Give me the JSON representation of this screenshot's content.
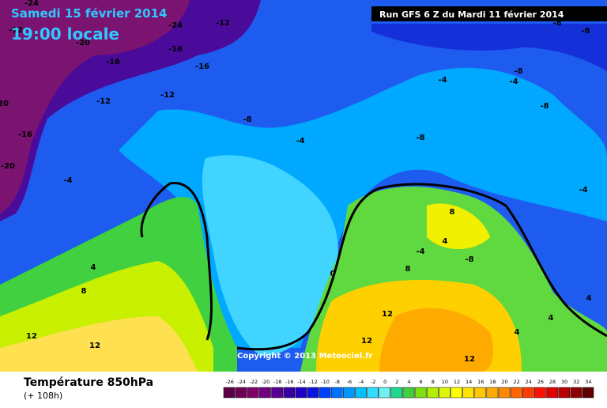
{
  "header": {
    "date": "Samedi 15 février 2014",
    "time": "19:00 locale",
    "run": "Run GFS 6 Z du Mardi 11 février 2014"
  },
  "copyright": "Copyright © 2013 Meteociel.fr",
  "footer": {
    "title": "Température 850hPa",
    "lead": "(+ 108h)"
  },
  "map_labels": [
    "-24",
    "-12",
    "-20",
    "-24",
    "-12",
    "-16",
    "-16",
    "-16",
    "-12",
    "-12",
    "20",
    "-16",
    "-20",
    "-8",
    "-4",
    "-4",
    "-4",
    "-4",
    "-8",
    "-8",
    "-8",
    "-8",
    "-8",
    "-4",
    "8",
    "4",
    "-4",
    "-8",
    "8",
    "0",
    "4",
    "8",
    "12",
    "12",
    "12",
    "12",
    "12",
    "4",
    "4",
    "4"
  ],
  "legend": {
    "values": [
      -26,
      -24,
      -22,
      -20,
      -18,
      -16,
      -14,
      -12,
      -10,
      -8,
      -6,
      -4,
      -2,
      0,
      2,
      4,
      6,
      8,
      10,
      12,
      14,
      16,
      18,
      20,
      22,
      24,
      26,
      28,
      30,
      32,
      34
    ],
    "colors": [
      "#5a0046",
      "#6e0058",
      "#82006a",
      "#700080",
      "#580094",
      "#3a00a8",
      "#2000c4",
      "#0a14e0",
      "#0040ff",
      "#0070ff",
      "#0098ff",
      "#00c0ff",
      "#30dcff",
      "#70f0f0",
      "#20d890",
      "#40d040",
      "#7ce010",
      "#b0f000",
      "#dcf800",
      "#ffff00",
      "#ffe400",
      "#ffc800",
      "#ffaa00",
      "#ff8800",
      "#ff6400",
      "#ff3c00",
      "#ff1000",
      "#e00000",
      "#b80000",
      "#900000",
      "#600000"
    ]
  }
}
